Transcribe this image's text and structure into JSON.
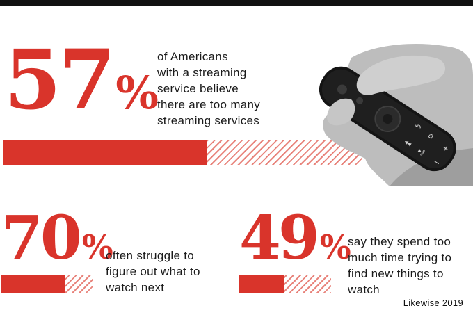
{
  "stats": [
    {
      "value": "57",
      "unit": "%",
      "fraction": 0.57,
      "text_lines": [
        "of Americans",
        "with a streaming",
        "service believe",
        "there are too many",
        "streaming services"
      ]
    },
    {
      "value": "70",
      "unit": "%",
      "fraction": 0.7,
      "text_lines": [
        "often struggle to",
        "figure out what to",
        "watch next"
      ]
    },
    {
      "value": "49",
      "unit": "%",
      "fraction": 0.49,
      "text_lines": [
        "say they spend too",
        "much time trying to",
        "find new things to",
        "watch"
      ]
    }
  ],
  "source": "Likewise 2019",
  "colors": {
    "accent": "#d9342b",
    "hatch": "#e8847c",
    "text": "#1a1a1a"
  },
  "image": {
    "subject": "remote-control-photo"
  }
}
